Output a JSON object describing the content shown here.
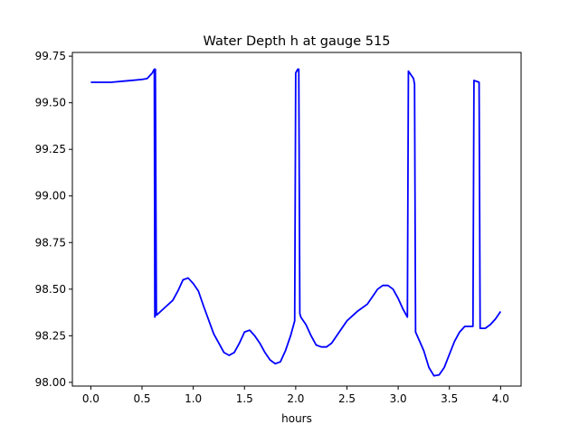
{
  "chart_data": {
    "type": "line",
    "title": "Water Depth h at gauge 515",
    "xlabel": "hours",
    "ylabel": "",
    "xlim": [
      -0.18,
      4.2
    ],
    "ylim": [
      97.98,
      99.77
    ],
    "x_ticks": [
      0.0,
      0.5,
      1.0,
      1.5,
      2.0,
      2.5,
      3.0,
      3.5,
      4.0
    ],
    "x_tick_labels": [
      "0.0",
      "0.5",
      "1.0",
      "1.5",
      "2.0",
      "2.5",
      "3.0",
      "3.5",
      "4.0"
    ],
    "y_ticks": [
      98.0,
      98.25,
      98.5,
      98.75,
      99.0,
      99.25,
      99.5,
      99.75
    ],
    "y_tick_labels": [
      "98.00",
      "98.25",
      "98.50",
      "98.75",
      "99.00",
      "99.25",
      "99.50",
      "99.75"
    ],
    "grid": false,
    "series": [
      {
        "color": "#0000ff",
        "x": [
          0.0,
          0.1,
          0.2,
          0.3,
          0.4,
          0.5,
          0.55,
          0.6,
          0.61,
          0.62,
          0.625,
          0.63,
          0.64,
          0.7,
          0.8,
          0.85,
          0.9,
          0.95,
          1.0,
          1.05,
          1.1,
          1.2,
          1.3,
          1.35,
          1.4,
          1.45,
          1.5,
          1.55,
          1.6,
          1.65,
          1.7,
          1.75,
          1.8,
          1.85,
          1.9,
          1.95,
          1.99,
          2.0,
          2.02,
          2.03,
          2.04,
          2.05,
          2.1,
          2.15,
          2.2,
          2.25,
          2.3,
          2.35,
          2.4,
          2.5,
          2.6,
          2.7,
          2.75,
          2.8,
          2.85,
          2.9,
          2.95,
          3.0,
          3.05,
          3.09,
          3.1,
          3.15,
          3.16,
          3.17,
          3.25,
          3.3,
          3.35,
          3.4,
          3.45,
          3.5,
          3.55,
          3.6,
          3.65,
          3.7,
          3.73,
          3.74,
          3.79,
          3.8,
          3.85,
          3.9,
          3.95,
          4.0
        ],
        "y": [
          99.61,
          99.61,
          99.61,
          99.615,
          99.62,
          99.625,
          99.63,
          99.66,
          99.67,
          99.68,
          98.35,
          99.68,
          98.36,
          98.39,
          98.44,
          98.49,
          98.55,
          98.56,
          98.53,
          98.49,
          98.41,
          98.26,
          98.16,
          98.145,
          98.16,
          98.21,
          98.27,
          98.28,
          98.25,
          98.21,
          98.16,
          98.12,
          98.1,
          98.11,
          98.17,
          98.25,
          98.33,
          99.66,
          99.68,
          99.68,
          98.37,
          98.35,
          98.31,
          98.25,
          98.2,
          98.19,
          98.19,
          98.21,
          98.25,
          98.33,
          98.38,
          98.42,
          98.46,
          98.5,
          98.52,
          98.52,
          98.5,
          98.45,
          98.39,
          98.35,
          99.67,
          99.63,
          99.6,
          98.27,
          98.17,
          98.08,
          98.035,
          98.04,
          98.08,
          98.15,
          98.22,
          98.27,
          98.3,
          98.3,
          98.3,
          99.62,
          99.61,
          98.29,
          98.29,
          98.31,
          98.34,
          98.38
        ]
      }
    ]
  }
}
